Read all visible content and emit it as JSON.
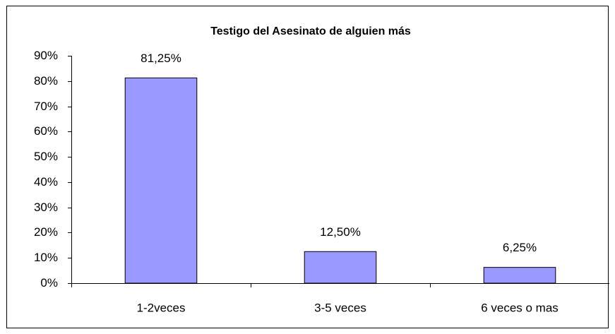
{
  "chart_data": {
    "type": "bar",
    "title": "Testigo del Asesinato de alguien más",
    "categories": [
      "1-2veces",
      "3-5 veces",
      "6 veces o mas"
    ],
    "values": [
      81.25,
      12.5,
      6.25
    ],
    "value_labels": [
      "81,25%",
      "12,50%",
      "6,25%"
    ],
    "color": "#9999ff",
    "ylim": [
      0,
      90
    ],
    "yticks": [
      {
        "value": 0,
        "label": "0%"
      },
      {
        "value": 10,
        "label": "10%"
      },
      {
        "value": 20,
        "label": "20%"
      },
      {
        "value": 30,
        "label": "30%"
      },
      {
        "value": 40,
        "label": "40%"
      },
      {
        "value": 50,
        "label": "50%"
      },
      {
        "value": 60,
        "label": "60%"
      },
      {
        "value": 70,
        "label": "70%"
      },
      {
        "value": 80,
        "label": "80%"
      },
      {
        "value": 90,
        "label": "90%"
      }
    ],
    "grid": false
  }
}
